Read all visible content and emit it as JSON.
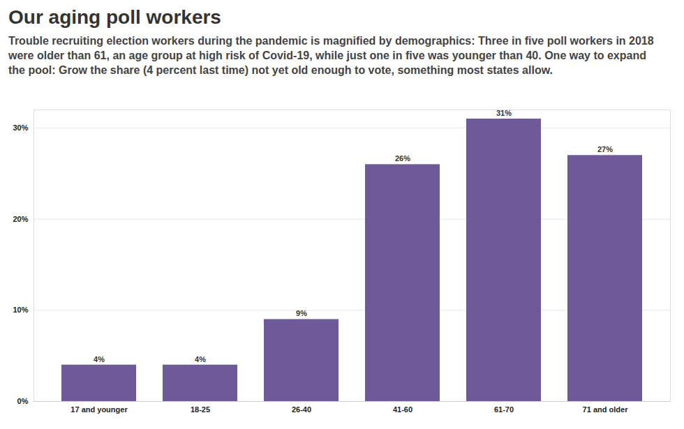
{
  "chart_data": {
    "type": "bar",
    "title": "Our aging poll workers",
    "subtitle": "Trouble recruiting election workers during the pandemic is magnified by demographics: Three in five poll workers in 2018 were older than 61, an age group at high risk of Covid-19, while just one in five was younger than 40. One way to expand the pool: Grow the share (4 percent last time) not yet old enough to vote, something most states allow.",
    "categories": [
      "17 and younger",
      "18-25",
      "26-40",
      "41-60",
      "61-70",
      "71 and older"
    ],
    "values": [
      4,
      4,
      9,
      26,
      31,
      27
    ],
    "value_labels": [
      "4%",
      "4%",
      "9%",
      "26%",
      "31%",
      "27%"
    ],
    "color": "#6f5a99",
    "ylim": [
      0,
      32
    ],
    "yticks": [
      {
        "value": 0,
        "label": "0%"
      },
      {
        "value": 10,
        "label": "10%"
      },
      {
        "value": 20,
        "label": "20%"
      },
      {
        "value": 30,
        "label": "30%"
      }
    ],
    "grid": true,
    "data_labels": true
  }
}
